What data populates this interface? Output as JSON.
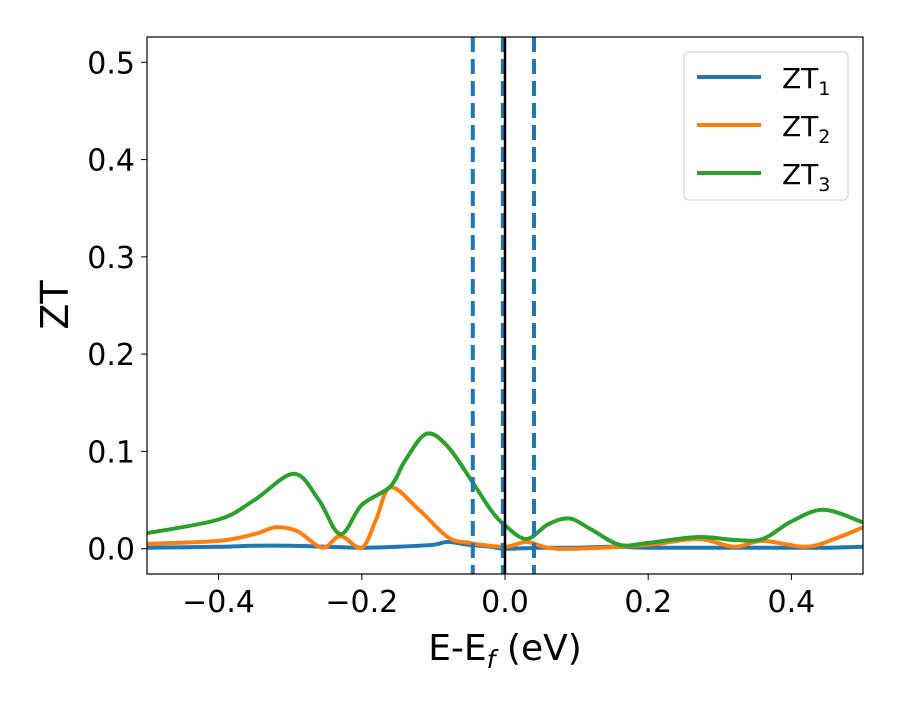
{
  "chart_data": {
    "type": "line",
    "title": "",
    "xlabel": "E-E_f (eV)",
    "xlabel_main": "E-E",
    "xlabel_sub": "f",
    "xlabel_tail": " (eV)",
    "ylabel": "ZT",
    "xlim": [
      -0.5,
      0.5
    ],
    "ylim": [
      -0.026,
      0.526
    ],
    "xticks": [
      -0.4,
      -0.2,
      0.0,
      0.2,
      0.4
    ],
    "xtick_labels": [
      "−0.4",
      "−0.2",
      "0.0",
      "0.2",
      "0.4"
    ],
    "yticks": [
      0.0,
      0.1,
      0.2,
      0.3,
      0.4,
      0.5
    ],
    "ytick_labels": [
      "0.0",
      "0.1",
      "0.2",
      "0.3",
      "0.4",
      "0.5"
    ],
    "legend_position": "top-right",
    "series": [
      {
        "name": "ZT1",
        "label": "ZT",
        "sub": "1",
        "color": "#1f77b4",
        "x": [
          -0.5,
          -0.4,
          -0.35,
          -0.3,
          -0.25,
          -0.2,
          -0.15,
          -0.1,
          -0.08,
          -0.05,
          -0.02,
          0.0,
          0.05,
          0.1,
          0.15,
          0.2,
          0.25,
          0.3,
          0.35,
          0.4,
          0.45,
          0.5
        ],
        "y": [
          0.001,
          0.002,
          0.003,
          0.003,
          0.002,
          0.001,
          0.002,
          0.004,
          0.007,
          0.004,
          0.002,
          0.0,
          0.001,
          0.001,
          0.002,
          0.001,
          0.001,
          0.001,
          0.001,
          0.001,
          0.001,
          0.002
        ]
      },
      {
        "name": "ZT2",
        "label": "ZT",
        "sub": "2",
        "color": "#ff7f0e",
        "x": [
          -0.5,
          -0.4,
          -0.35,
          -0.32,
          -0.29,
          -0.255,
          -0.23,
          -0.2,
          -0.18,
          -0.16,
          -0.12,
          -0.08,
          -0.05,
          0.0,
          0.03,
          0.06,
          0.1,
          0.2,
          0.27,
          0.32,
          0.36,
          0.42,
          0.46,
          0.5
        ],
        "y": [
          0.005,
          0.008,
          0.015,
          0.022,
          0.018,
          0.001,
          0.013,
          0.001,
          0.03,
          0.063,
          0.04,
          0.012,
          0.006,
          0.002,
          0.007,
          0.001,
          0.0,
          0.004,
          0.01,
          0.002,
          0.008,
          0.002,
          0.01,
          0.022
        ]
      },
      {
        "name": "ZT3",
        "label": "ZT",
        "sub": "3",
        "color": "#2ca02c",
        "x": [
          -0.5,
          -0.4,
          -0.35,
          -0.295,
          -0.26,
          -0.23,
          -0.2,
          -0.16,
          -0.14,
          -0.11,
          -0.08,
          -0.045,
          -0.02,
          0.0,
          0.03,
          0.06,
          0.09,
          0.12,
          0.16,
          0.2,
          0.27,
          0.32,
          0.36,
          0.4,
          0.445,
          0.5
        ],
        "y": [
          0.016,
          0.03,
          0.05,
          0.077,
          0.05,
          0.015,
          0.045,
          0.064,
          0.09,
          0.118,
          0.105,
          0.068,
          0.04,
          0.024,
          0.01,
          0.025,
          0.031,
          0.02,
          0.004,
          0.006,
          0.012,
          0.009,
          0.01,
          0.028,
          0.04,
          0.027
        ]
      }
    ],
    "vlines": [
      {
        "x": -0.045,
        "style": "dashed",
        "color": "#1f77b4"
      },
      {
        "x": -0.003,
        "style": "dashed",
        "color": "#1f77b4"
      },
      {
        "x": 0.0,
        "style": "solid",
        "color": "#000000"
      },
      {
        "x": 0.0405,
        "style": "dashed",
        "color": "#1f77b4"
      }
    ]
  }
}
